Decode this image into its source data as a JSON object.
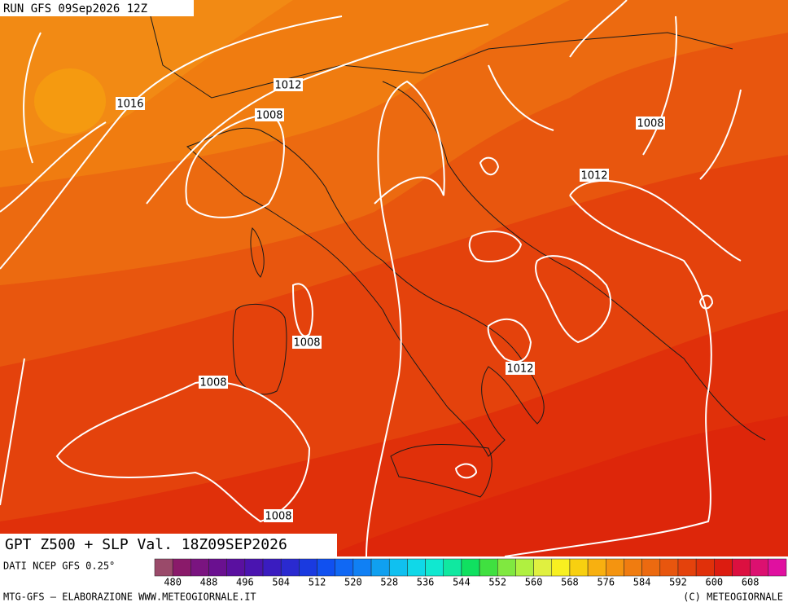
{
  "header": {
    "run": "RUN GFS 09Sep2026 12Z"
  },
  "isobar_labels": [
    1016,
    1012,
    1008,
    1008,
    1012,
    1008,
    1012,
    1008,
    1008
  ],
  "footer": {
    "title": "GPT Z500 + SLP Val. 18Z09SEP2026",
    "source": "DATI NCEP GFS 0.25°",
    "credit": "MTG-GFS — ELABORAZIONE WWW.METEOGIORNALE.IT",
    "copyright": "(C) METEOGIORNALE"
  },
  "colorbar": {
    "ticks": [
      480,
      488,
      496,
      504,
      512,
      520,
      528,
      536,
      544,
      552,
      560,
      568,
      576,
      584,
      592,
      600,
      608
    ],
    "colors": [
      "#9a4a6a",
      "#8a1a6a",
      "#7a1480",
      "#6a1090",
      "#5a10a0",
      "#4a14b0",
      "#3a1cc0",
      "#2a2ad0",
      "#1a3ae0",
      "#1050f0",
      "#1068f4",
      "#1080f4",
      "#10a0f0",
      "#10c0f0",
      "#10d8e8",
      "#10e8d0",
      "#10e8a0",
      "#10e060",
      "#40e040",
      "#80e840",
      "#b0f040",
      "#e0f040",
      "#f8f020",
      "#f8d010",
      "#f8b010",
      "#f49410",
      "#f07c10",
      "#ec6a10",
      "#e8560e",
      "#e4420c",
      "#e0300a",
      "#dc1c10",
      "#dc1040",
      "#dc1070",
      "#e010a0"
    ]
  }
}
